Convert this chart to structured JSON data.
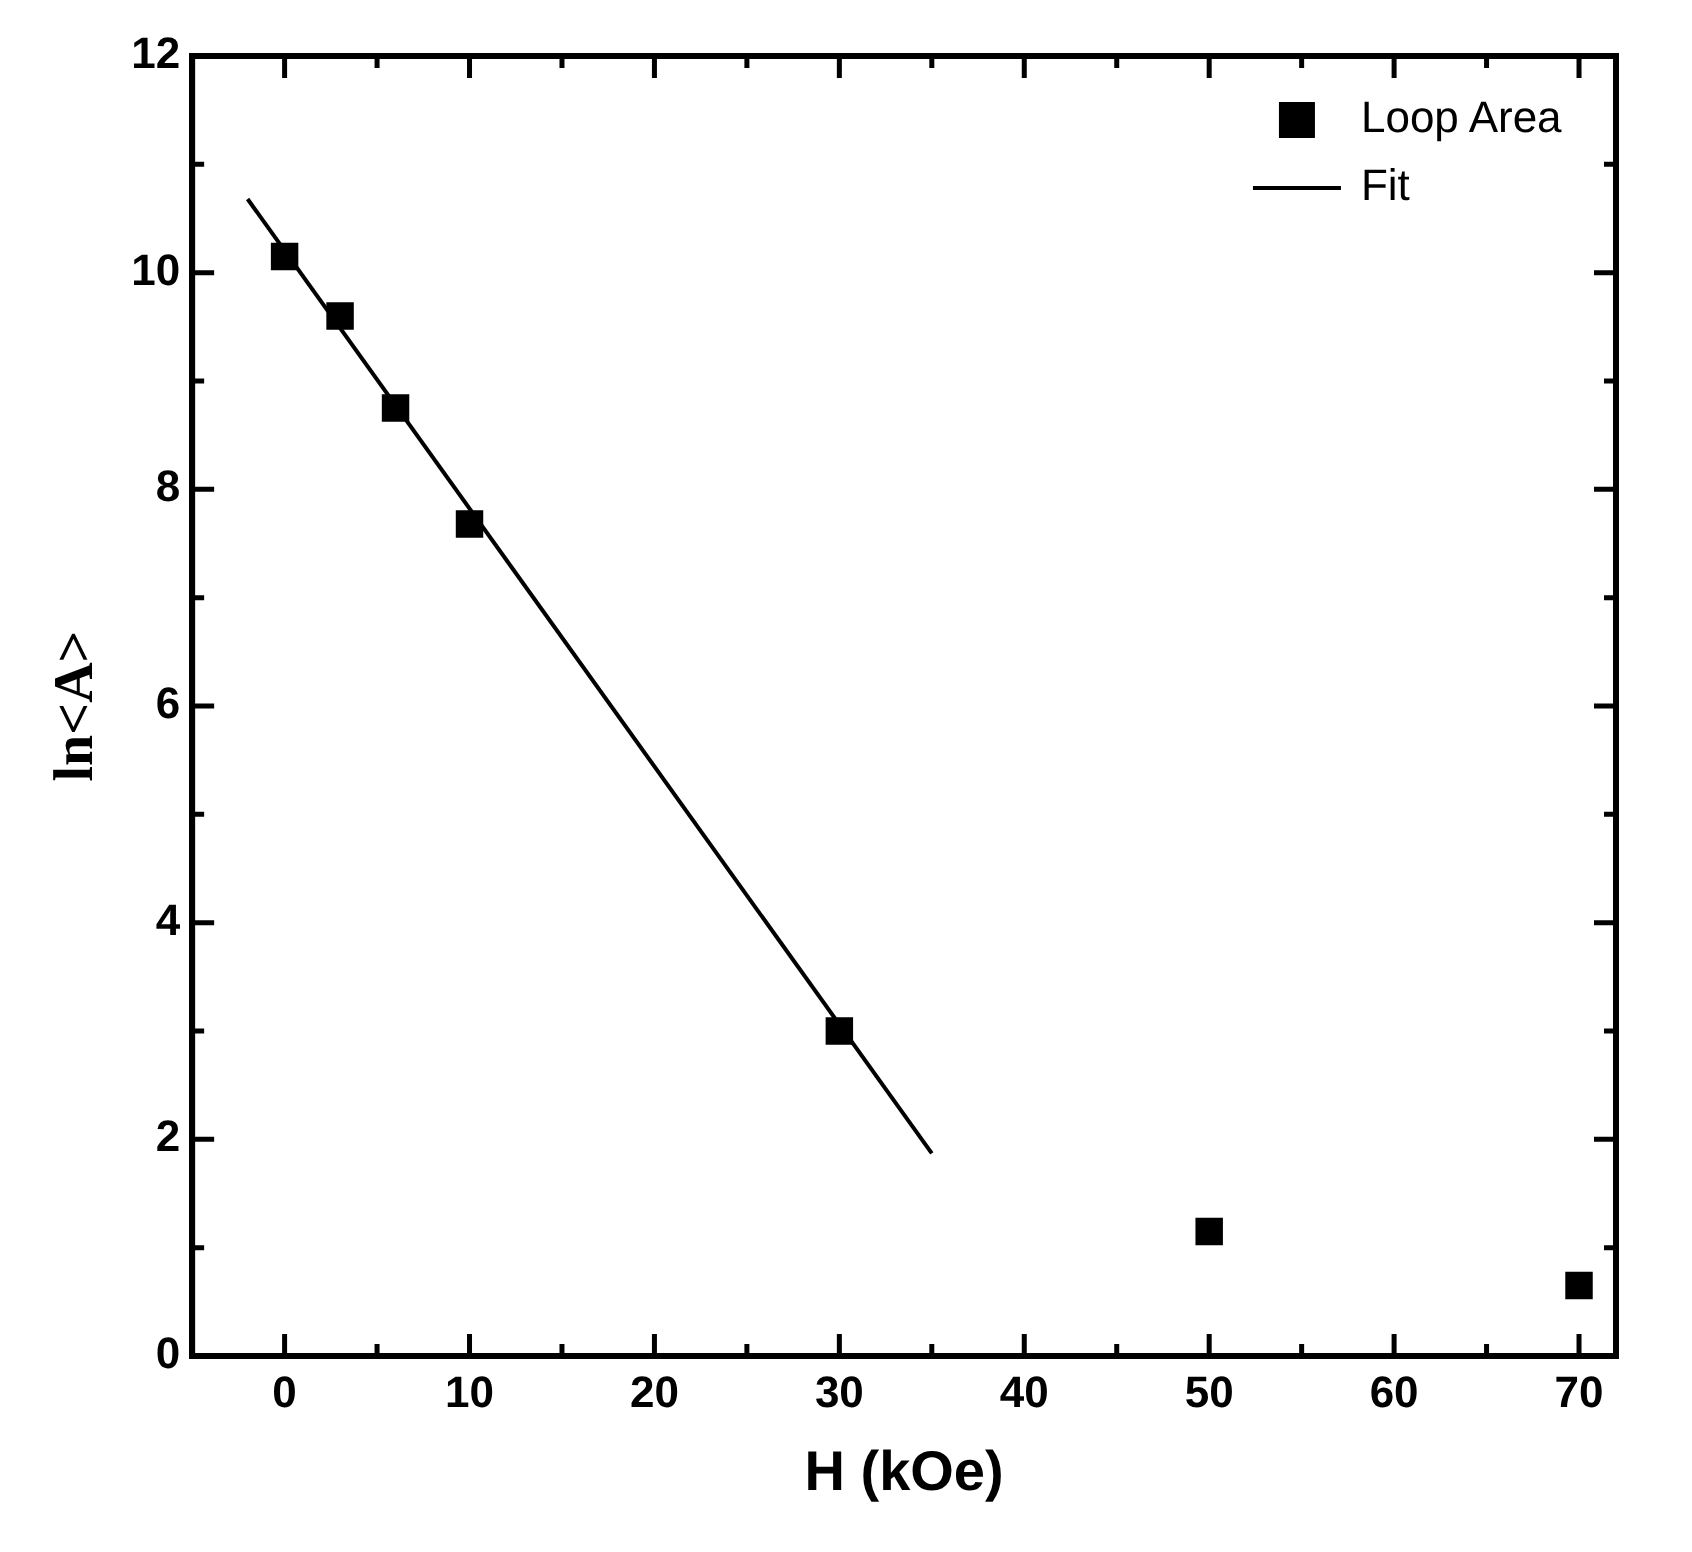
{
  "chart_data": {
    "type": "scatter",
    "xlabel": "H (kOe)",
    "ylabel": "ln<A>",
    "x": [
      0,
      3,
      6,
      10,
      30,
      50,
      70
    ],
    "series": [
      {
        "name": "Loop Area",
        "color": "#000000",
        "marker": "square",
        "values": [
          10.15,
          9.6,
          8.75,
          7.68,
          3.0,
          1.15,
          0.65
        ]
      },
      {
        "name": "Fit",
        "type": "line",
        "color": "#000000",
        "marker": "none",
        "line_style": "solid",
        "x": [
          -2,
          35
        ],
        "values": [
          10.68,
          1.87
        ]
      }
    ],
    "xlim": [
      -5,
      72
    ],
    "ylim": [
      0,
      12
    ],
    "xticks": [
      0,
      {
        "value": 5,
        "label": null
      },
      10,
      {
        "value": 15,
        "label": null
      },
      20,
      {
        "value": 25,
        "label": null
      },
      30,
      {
        "value": 35,
        "label": null
      },
      40,
      {
        "value": 45,
        "label": null
      },
      50,
      {
        "value": 55,
        "label": null
      },
      60,
      {
        "value": 65,
        "label": null
      },
      70
    ],
    "yticks": [
      0,
      {
        "value": 1,
        "label": null
      },
      2,
      {
        "value": 3,
        "label": null
      },
      4,
      {
        "value": 5,
        "label": null
      },
      6,
      {
        "value": 7,
        "label": null
      },
      8,
      {
        "value": 9,
        "label": null
      },
      10,
      {
        "value": 11,
        "label": null
      },
      12
    ],
    "grid": false,
    "legend": "top right"
  }
}
